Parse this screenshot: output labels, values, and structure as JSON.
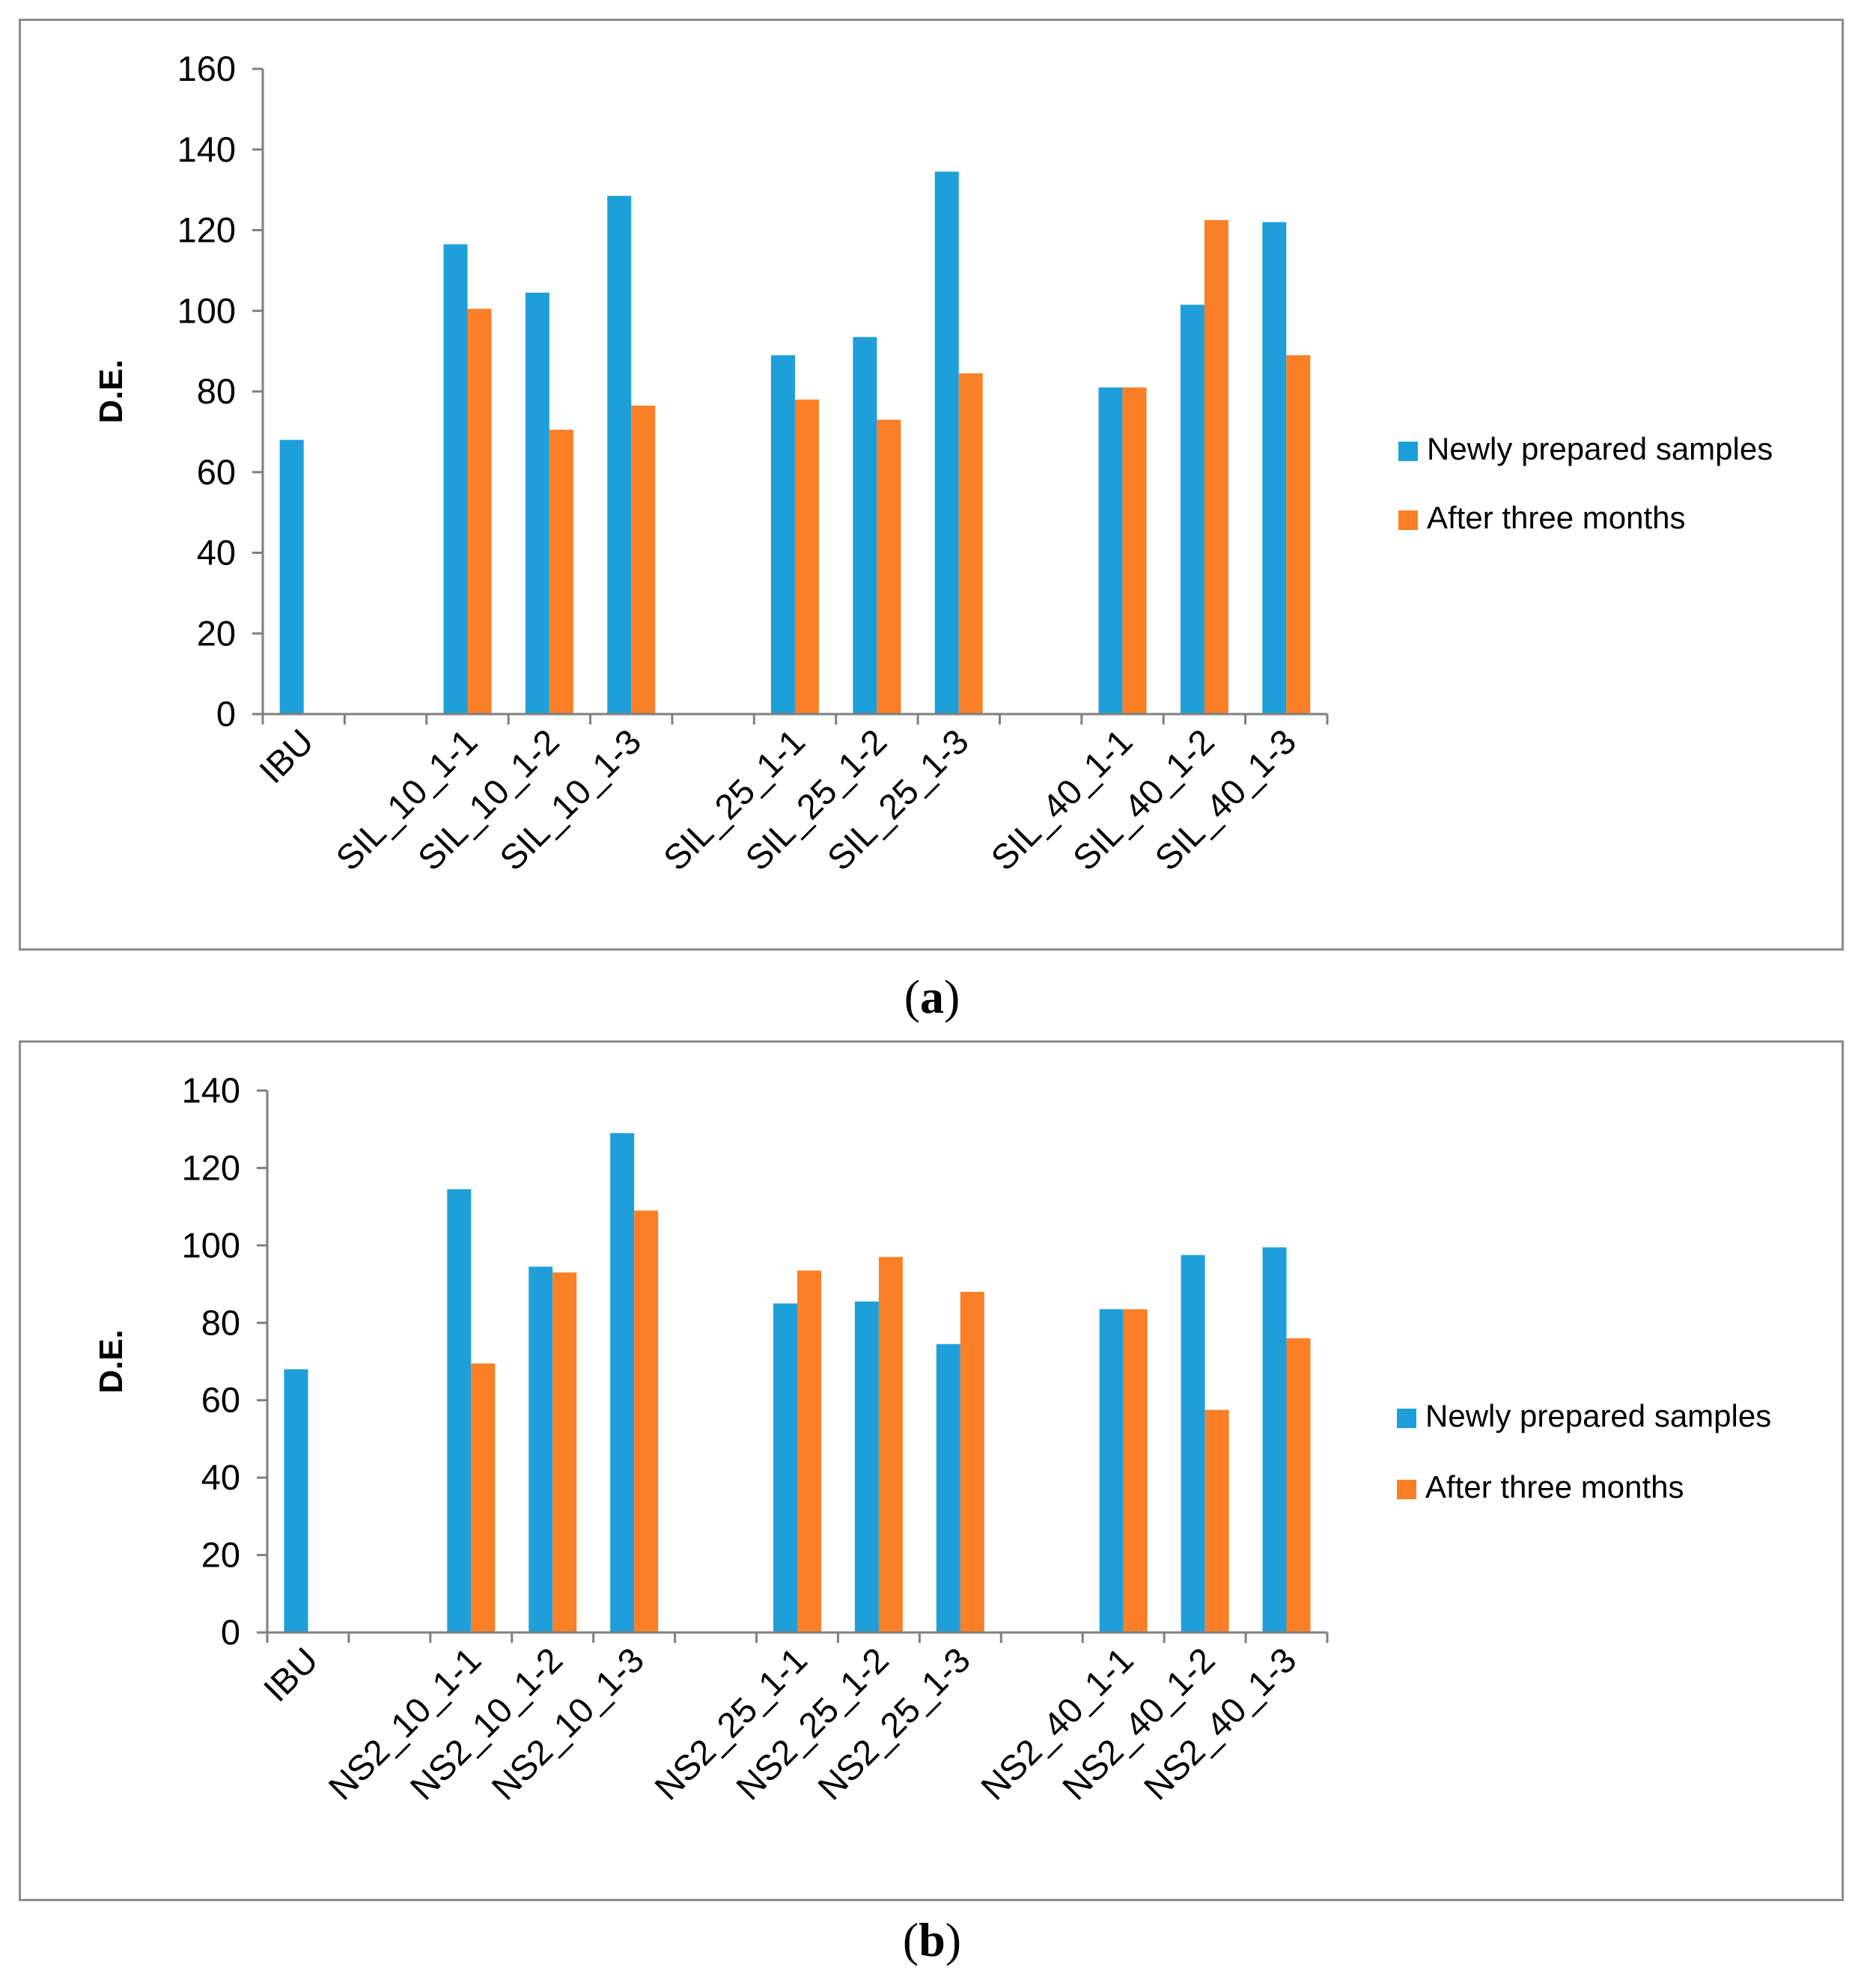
{
  "colors": {
    "newly": "#1f9fd9",
    "after": "#fa7f26",
    "axis": "#7f7f7f",
    "frame": "#8c8c8c"
  },
  "chart_data": [
    {
      "panel_label": "a",
      "type": "bar",
      "ylabel": "D.E.",
      "ylim": [
        0,
        160
      ],
      "yticks": [
        0,
        20,
        40,
        60,
        80,
        100,
        120,
        140,
        160
      ],
      "categories": [
        "IBU",
        "",
        "SIL_10_1-1",
        "SIL_10_1-2",
        "SIL_10_1-3",
        "",
        "SIL_25_1-1",
        "SIL_25_1-2",
        "SIL_25_1-3",
        "",
        "SIL_40_1-1",
        "SIL_40_1-2",
        "SIL_40_1-3"
      ],
      "series": [
        {
          "name": "Newly prepared samples",
          "color": "#1f9fd9",
          "values": [
            68,
            null,
            116.5,
            104.5,
            128.5,
            null,
            89,
            93.5,
            134.5,
            null,
            81,
            101.5,
            122
          ]
        },
        {
          "name": "After three months",
          "color": "#fa7f26",
          "values": [
            null,
            null,
            100.5,
            70.5,
            76.5,
            null,
            78,
            73,
            84.5,
            null,
            81,
            122.5,
            89
          ]
        }
      ],
      "legend_position": "right"
    },
    {
      "panel_label": "b",
      "type": "bar",
      "ylabel": "D.E.",
      "ylim": [
        0,
        140
      ],
      "yticks": [
        0,
        20,
        40,
        60,
        80,
        100,
        120,
        140
      ],
      "categories": [
        "IBU",
        "",
        "NS2_10_1-1",
        "NS2_10_1-2",
        "NS2_10_1-3",
        "",
        "NS2_25_1-1",
        "NS2_25_1-2",
        "NS2_25_1-3",
        "",
        "NS2_40_1-1",
        "NS2_40_1-2",
        "NS2_40_1-3"
      ],
      "series": [
        {
          "name": "Newly prepared samples",
          "color": "#1f9fd9",
          "values": [
            68,
            null,
            114.5,
            94.5,
            129,
            null,
            85,
            85.5,
            74.5,
            null,
            83.5,
            97.5,
            99.5
          ]
        },
        {
          "name": "After three months",
          "color": "#fa7f26",
          "values": [
            null,
            null,
            69.5,
            93,
            109,
            null,
            93.5,
            97,
            88,
            null,
            83.5,
            57.5,
            76
          ]
        }
      ],
      "legend_position": "right"
    }
  ]
}
